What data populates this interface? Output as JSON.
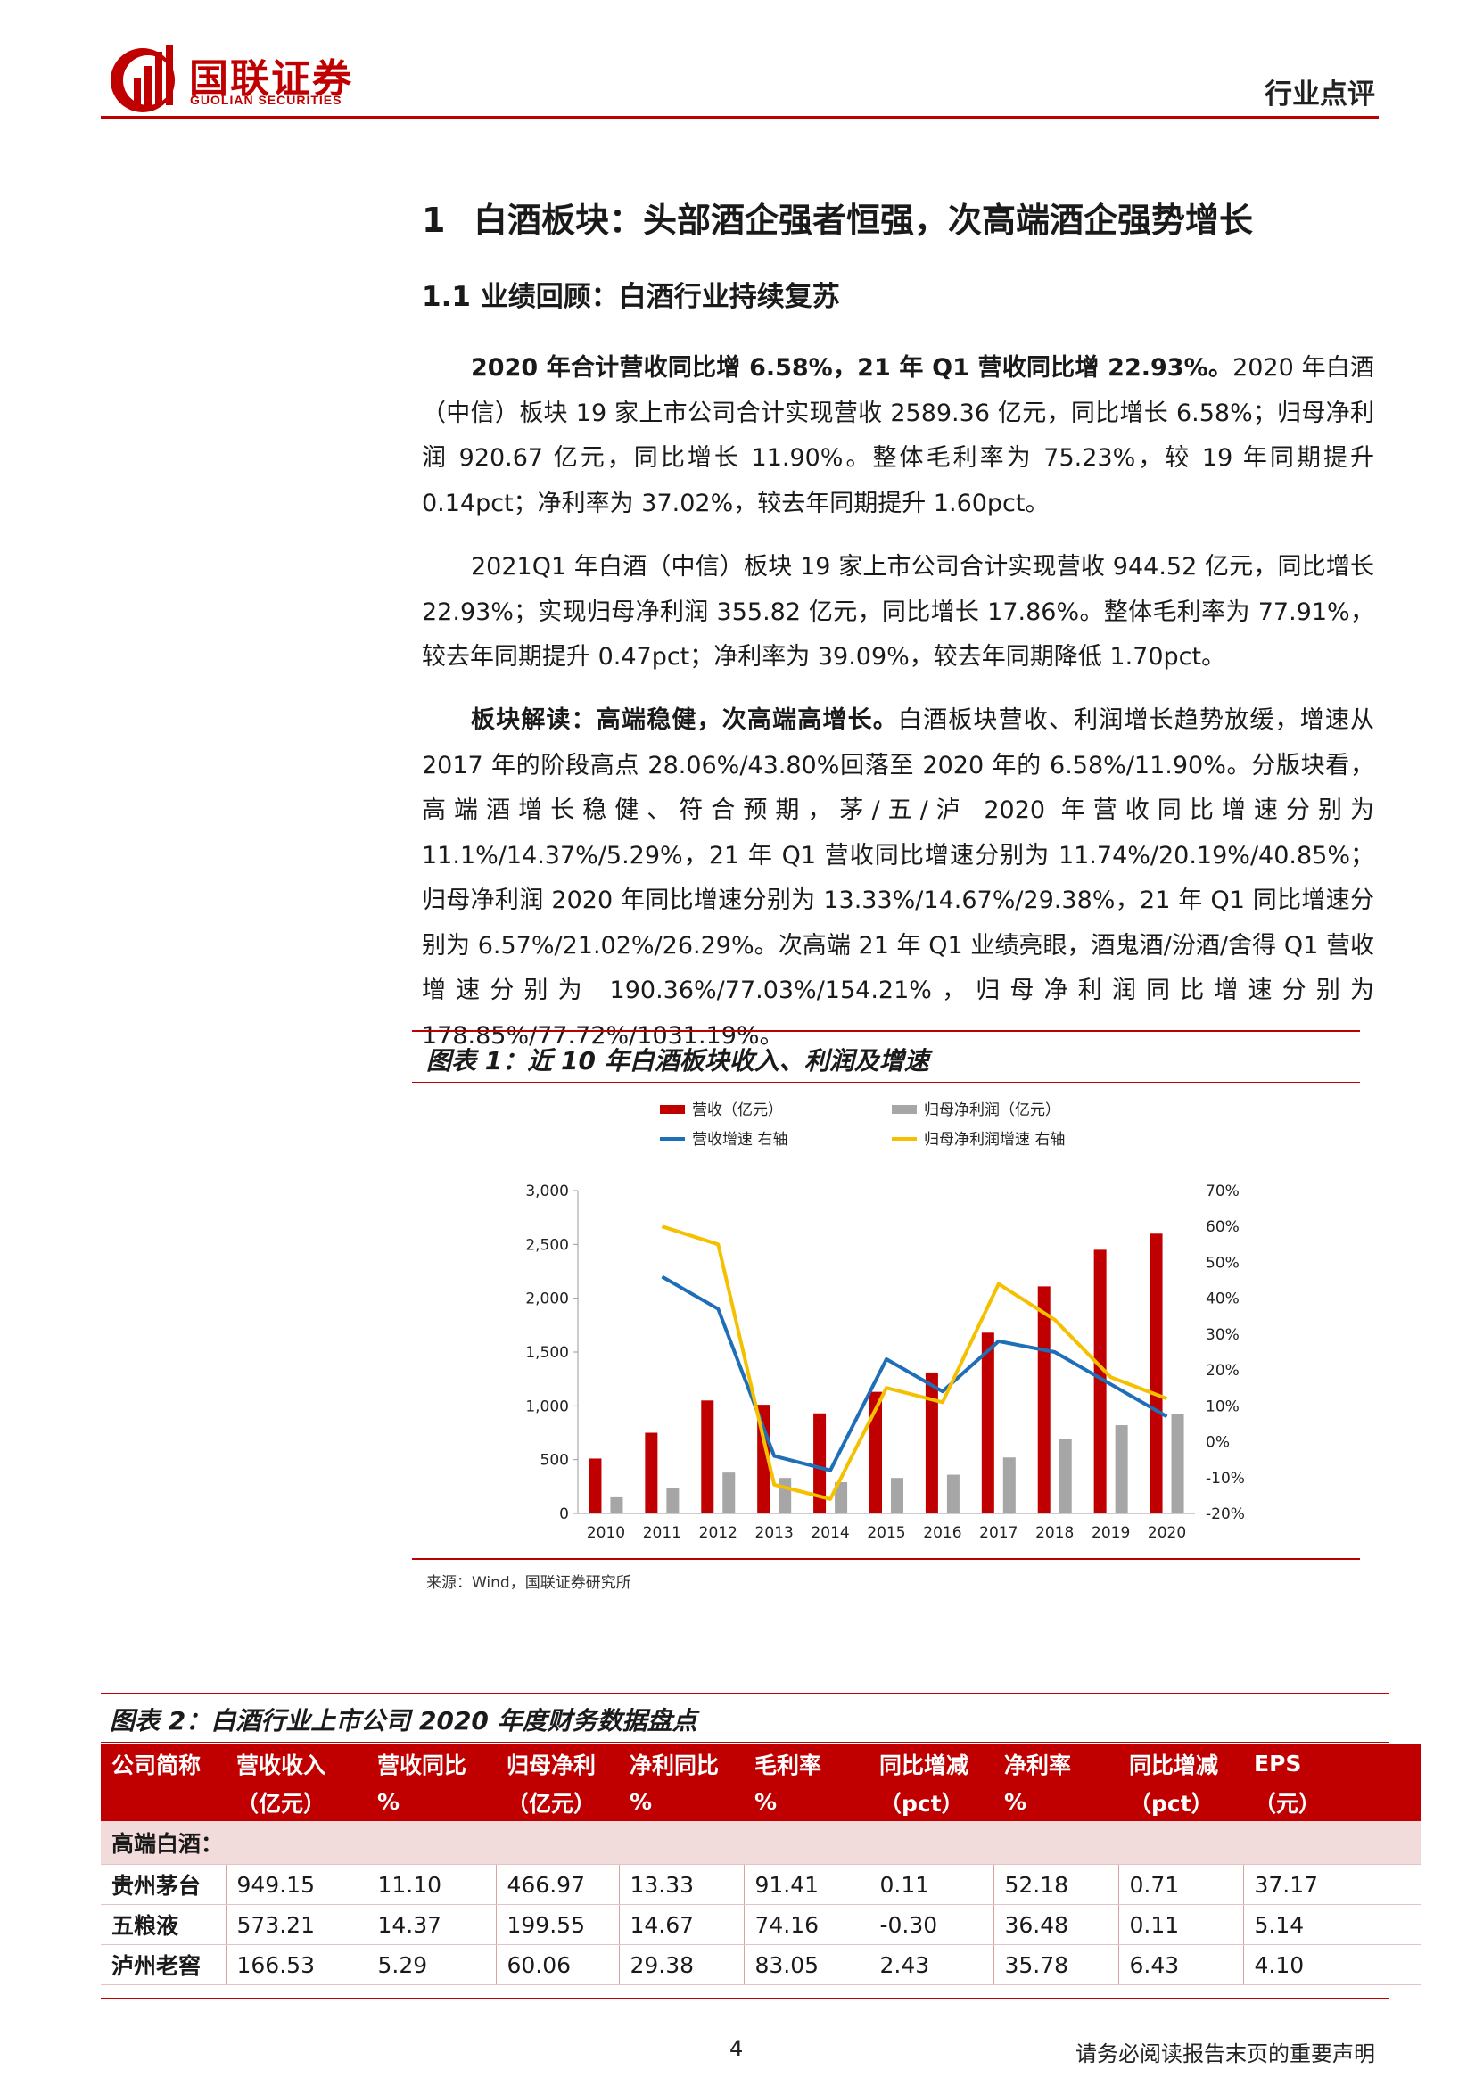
{
  "header": {
    "logo_cn": "国联证券",
    "logo_en": "GUOLIAN SECURITIES",
    "tag": "行业点评",
    "brand_color": "#c00000"
  },
  "h1": {
    "num": "1",
    "text": "白酒板块：头部酒企强者恒强，次高端酒企强势增长"
  },
  "h2": {
    "text": "1.1 业绩回顾：白酒行业持续复苏"
  },
  "p1": {
    "bold": "2020 年合计营收同比增 6.58%，21 年 Q1 营收同比增 22.93%。",
    "text": "2020 年白酒（中信）板块 19 家上市公司合计实现营收 2589.36 亿元，同比增长 6.58%；归母净利润 920.67 亿元，同比增长 11.90%。整体毛利率为 75.23%，较 19 年同期提升 0.14pct；净利率为 37.02%，较去年同期提升 1.60pct。"
  },
  "p2": {
    "text": "2021Q1 年白酒（中信）板块 19 家上市公司合计实现营收 944.52 亿元，同比增长 22.93%；实现归母净利润 355.82 亿元，同比增长 17.86%。整体毛利率为 77.91%，较去年同期提升 0.47pct；净利率为 39.09%，较去年同期降低 1.70pct。"
  },
  "p3": {
    "bold": "板块解读：高端稳健，次高端高增长。",
    "text": "白酒板块营收、利润增长趋势放缓，增速从 2017 年的阶段高点 28.06%/43.80%回落至 2020 年的 6.58%/11.90%。分版块看，高端酒增长稳健、符合预期，茅/五/泸 2020 年营收同比增速分别为 11.1%/14.37%/5.29%，21 年 Q1 营收同比增速分别为 11.74%/20.19%/40.85%；归母净利润 2020 年同比增速分别为 13.33%/14.67%/29.38%，21 年 Q1 同比增速分别为 6.57%/21.02%/26.29%。次高端 21 年 Q1 业绩亮眼，酒鬼酒/汾酒/舍得 Q1 营收增速分别为 190.36%/77.03%/154.21%，归母净利润同比增速分别为 178.85%/77.72%/1031.19%。"
  },
  "figure1": {
    "title": "图表 1：近 10 年白酒板块收入、利润及增速",
    "source": "来源：Wind，国联证券研究所"
  },
  "chart_data": {
    "type": "bar",
    "categories": [
      "2010",
      "2011",
      "2012",
      "2013",
      "2014",
      "2015",
      "2016",
      "2017",
      "2018",
      "2019",
      "2020"
    ],
    "series": [
      {
        "name": "营收（亿元）",
        "kind": "bar",
        "axis": "left",
        "color": "#c00000",
        "values": [
          510,
          750,
          1050,
          1010,
          930,
          1130,
          1310,
          1680,
          2110,
          2450,
          2600
        ]
      },
      {
        "name": "归母净利润（亿元）",
        "kind": "bar",
        "axis": "left",
        "color": "#a6a6a6",
        "values": [
          150,
          240,
          380,
          330,
          290,
          330,
          360,
          520,
          690,
          820,
          920
        ]
      },
      {
        "name": "营收增速  右轴",
        "kind": "line",
        "axis": "right",
        "color": "#1f6fb8",
        "values": [
          null,
          46,
          37,
          -4,
          -8,
          23,
          14,
          28,
          25,
          16,
          7
        ]
      },
      {
        "name": "归母净利润增速  右轴",
        "kind": "line",
        "axis": "right",
        "color": "#f5c000",
        "values": [
          null,
          60,
          55,
          -12,
          -16,
          15,
          11,
          44,
          34,
          18,
          12
        ]
      }
    ],
    "ylim_left": [
      0,
      3000
    ],
    "yticks_left": [
      "0",
      "500",
      "1,000",
      "1,500",
      "2,000",
      "2,500",
      "3,000"
    ],
    "ylim_right": [
      -20,
      70
    ],
    "yticks_right": [
      "-20%",
      "-10%",
      "0%",
      "10%",
      "20%",
      "30%",
      "40%",
      "50%",
      "60%",
      "70%"
    ],
    "legend_position": "top",
    "grid": false
  },
  "table2": {
    "title": "图表 2：白酒行业上市公司 2020 年度财务数据盘点",
    "headers_line1": [
      "公司简称",
      "营收收入",
      "营收同比",
      "归母净利",
      "净利同比",
      "毛利率",
      "同比增减",
      "净利率",
      "同比增减",
      "EPS"
    ],
    "headers_line2": [
      "",
      "（亿元）",
      "%",
      "（亿元）",
      "%",
      "%",
      "（pct）",
      "%",
      "（pct）",
      "（元）"
    ],
    "section": "高端白酒：",
    "rows": [
      [
        "贵州茅台",
        "949.15",
        "11.10",
        "466.97",
        "13.33",
        "91.41",
        "0.11",
        "52.18",
        "0.71",
        "37.17"
      ],
      [
        "五粮液",
        "573.21",
        "14.37",
        "199.55",
        "14.67",
        "74.16",
        "-0.30",
        "36.48",
        "0.11",
        "5.14"
      ],
      [
        "泸州老窖",
        "166.53",
        "5.29",
        "60.06",
        "29.38",
        "83.05",
        "2.43",
        "35.78",
        "6.43",
        "4.10"
      ]
    ]
  },
  "footer": {
    "page": "4",
    "note": "请务必阅读报告末页的重要声明"
  }
}
